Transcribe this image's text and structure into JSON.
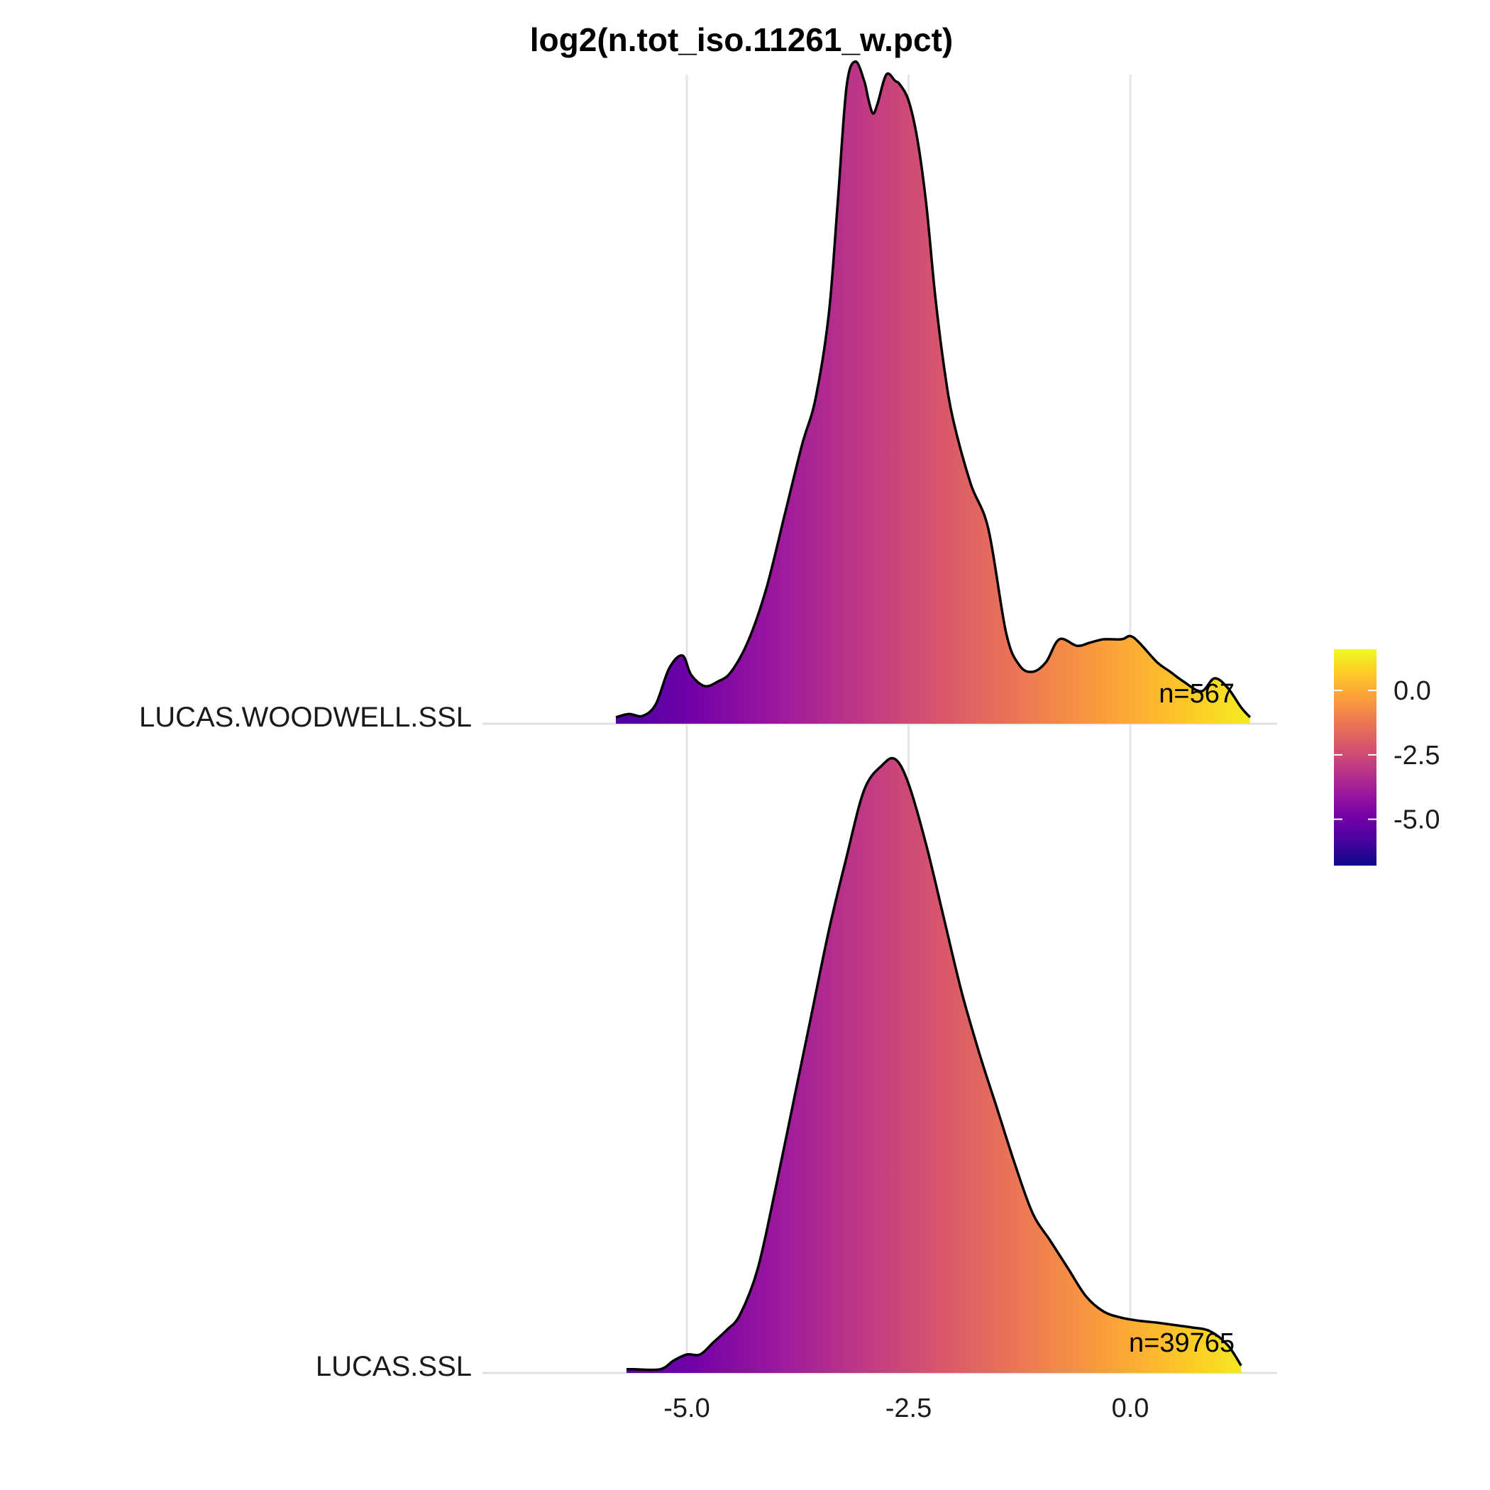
{
  "chart_data": {
    "type": "area",
    "title": "log2(n.tot_iso.11261_w.pct)",
    "xlabel": "",
    "ylabel": "",
    "xlim": [
      -7.0,
      1.55
    ],
    "x_ticks": [
      -5.0,
      -2.5,
      0.0
    ],
    "x_tick_labels": [
      "-5.0",
      "-2.5",
      "0.0"
    ],
    "grid": true,
    "legend_position": "right",
    "colorbar": {
      "range": [
        -6.8,
        1.6
      ],
      "ticks": [
        0.0,
        -2.5,
        -5.0
      ],
      "tick_labels": [
        "0.0",
        "-2.5",
        "-5.0"
      ],
      "palette": "plasma",
      "stops": [
        "#0d0887",
        "#46039f",
        "#7201a8",
        "#9c179e",
        "#bd3786",
        "#d8576b",
        "#ed7953",
        "#fb9f3a",
        "#fdca26",
        "#f0f921"
      ]
    },
    "series": [
      {
        "name": "LUCAS.WOODWELL.SSL",
        "n_label": "n=567",
        "x": [
          -5.8,
          -5.65,
          -5.5,
          -5.35,
          -5.2,
          -5.05,
          -4.95,
          -4.8,
          -4.65,
          -4.5,
          -4.3,
          -4.1,
          -3.9,
          -3.7,
          -3.55,
          -3.4,
          -3.3,
          -3.2,
          -3.1,
          -3.0,
          -2.95,
          -2.9,
          -2.85,
          -2.75,
          -2.65,
          -2.6,
          -2.5,
          -2.4,
          -2.3,
          -2.2,
          -2.1,
          -2.0,
          -1.8,
          -1.6,
          -1.4,
          -1.25,
          -1.1,
          -0.95,
          -0.8,
          -0.6,
          -0.45,
          -0.3,
          -0.1,
          0.0,
          0.1,
          0.3,
          0.45,
          0.6,
          0.8,
          0.95,
          1.1,
          1.25,
          1.35
        ],
        "density": [
          0.01,
          0.015,
          0.012,
          0.03,
          0.085,
          0.105,
          0.075,
          0.058,
          0.065,
          0.08,
          0.13,
          0.21,
          0.32,
          0.43,
          0.5,
          0.63,
          0.8,
          0.98,
          1.02,
          0.99,
          0.96,
          0.94,
          0.955,
          1.0,
          0.99,
          0.985,
          0.96,
          0.9,
          0.8,
          0.66,
          0.55,
          0.47,
          0.37,
          0.3,
          0.14,
          0.09,
          0.08,
          0.095,
          0.13,
          0.12,
          0.125,
          0.13,
          0.13,
          0.135,
          0.125,
          0.095,
          0.08,
          0.065,
          0.05,
          0.07,
          0.055,
          0.025,
          0.01
        ]
      },
      {
        "name": "LUCAS.SSL",
        "n_label": "n=39765",
        "x": [
          -5.68,
          -5.6,
          -5.3,
          -5.15,
          -5.0,
          -4.85,
          -4.7,
          -4.55,
          -4.4,
          -4.2,
          -4.0,
          -3.8,
          -3.6,
          -3.4,
          -3.2,
          -3.0,
          -2.8,
          -2.65,
          -2.5,
          -2.3,
          -2.1,
          -1.9,
          -1.7,
          -1.5,
          -1.3,
          -1.1,
          -0.9,
          -0.7,
          -0.5,
          -0.3,
          -0.1,
          0.1,
          0.3,
          0.5,
          0.7,
          0.9,
          1.1,
          1.25
        ],
        "density": [
          0.006,
          0.006,
          0.006,
          0.02,
          0.03,
          0.03,
          0.05,
          0.07,
          0.095,
          0.17,
          0.3,
          0.44,
          0.58,
          0.72,
          0.84,
          0.95,
          0.99,
          1.0,
          0.96,
          0.86,
          0.74,
          0.62,
          0.52,
          0.43,
          0.34,
          0.26,
          0.215,
          0.17,
          0.125,
          0.1,
          0.09,
          0.085,
          0.082,
          0.078,
          0.074,
          0.068,
          0.045,
          0.012
        ]
      }
    ]
  }
}
